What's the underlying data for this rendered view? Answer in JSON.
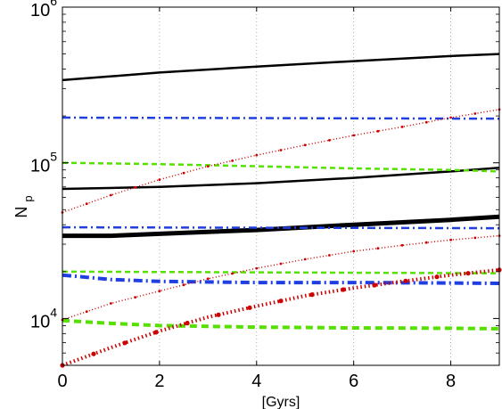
{
  "chart_data": {
    "type": "line",
    "title": "",
    "xlabel": "[Gyrs]",
    "ylabel": "N",
    "ylabel_subscript": "p",
    "xlim": [
      0,
      9
    ],
    "ylim": [
      5000,
      1000000
    ],
    "yscale": "log",
    "grid": "x-dotted",
    "legend": "none",
    "x_ticks": [
      {
        "value": 0,
        "label": "0"
      },
      {
        "value": 2,
        "label": "2"
      },
      {
        "value": 4,
        "label": "4"
      },
      {
        "value": 6,
        "label": "6"
      },
      {
        "value": 8,
        "label": "8"
      }
    ],
    "y_ticks": [
      {
        "value": 10000,
        "base": "10",
        "exp": "4"
      },
      {
        "value": 100000,
        "base": "10",
        "exp": "5"
      },
      {
        "value": 1000000,
        "base": "10",
        "exp": "6"
      }
    ],
    "series": [
      {
        "style": "solid",
        "color": "#000000",
        "weight": "thin",
        "x": [
          0,
          2,
          4,
          6,
          8,
          9
        ],
        "y": [
          340000,
          380000,
          415000,
          450000,
          485000,
          500000
        ]
      },
      {
        "style": "solid",
        "color": "#000000",
        "weight": "thin",
        "x": [
          0,
          2,
          4,
          6,
          8,
          9
        ],
        "y": [
          68000,
          70000,
          74000,
          80000,
          88000,
          93000
        ]
      },
      {
        "style": "solid",
        "color": "#000000",
        "weight": "thick",
        "x": [
          0,
          1,
          2,
          4,
          6,
          8,
          9
        ],
        "y": [
          34000,
          34000,
          35000,
          37000,
          40000,
          43000,
          45000
        ]
      },
      {
        "style": "dashdot",
        "color": "#1f3fe0",
        "weight": "thin",
        "x": [
          0,
          9
        ],
        "y": [
          195000,
          192000
        ]
      },
      {
        "style": "dashdot",
        "color": "#1f3fe0",
        "weight": "thin",
        "x": [
          0,
          9
        ],
        "y": [
          38500,
          38000
        ]
      },
      {
        "style": "dashdot",
        "color": "#1f3fe0",
        "weight": "thick",
        "x": [
          0,
          1,
          2,
          4,
          6,
          8,
          9
        ],
        "y": [
          19000,
          17800,
          17300,
          17000,
          17000,
          16900,
          16800
        ]
      },
      {
        "style": "dashed",
        "color": "#55e000",
        "weight": "thin",
        "x": [
          0,
          2,
          4,
          6,
          8,
          9
        ],
        "y": [
          100000,
          98000,
          95000,
          92000,
          90000,
          88000
        ]
      },
      {
        "style": "dashed",
        "color": "#55e000",
        "weight": "thin",
        "x": [
          0,
          9
        ],
        "y": [
          20000,
          19500
        ]
      },
      {
        "style": "dashed",
        "color": "#55e000",
        "weight": "thick",
        "x": [
          0,
          1,
          2,
          4,
          6,
          8,
          9
        ],
        "y": [
          9700,
          9300,
          9000,
          8800,
          8700,
          8650,
          8600
        ]
      },
      {
        "style": "dotted",
        "color": "#cc0000",
        "weight": "thin",
        "x": [
          0,
          1,
          2,
          3,
          4,
          5,
          6,
          7,
          8,
          9
        ],
        "y": [
          48000,
          62000,
          78000,
          95000,
          112000,
          130000,
          150000,
          170000,
          195000,
          220000
        ]
      },
      {
        "style": "dotted",
        "color": "#cc0000",
        "weight": "thin",
        "x": [
          0,
          1,
          2,
          3,
          4,
          5,
          6,
          7,
          8,
          9
        ],
        "y": [
          9800,
          12500,
          15000,
          18000,
          21000,
          24000,
          27000,
          29500,
          32000,
          34000
        ]
      },
      {
        "style": "dotted",
        "color": "#cc0000",
        "weight": "thick",
        "x": [
          0,
          1,
          2,
          3,
          4,
          5,
          6,
          7,
          8,
          9
        ],
        "y": [
          5000,
          6500,
          8300,
          10200,
          12000,
          14000,
          15700,
          17300,
          19000,
          20500
        ]
      }
    ]
  }
}
